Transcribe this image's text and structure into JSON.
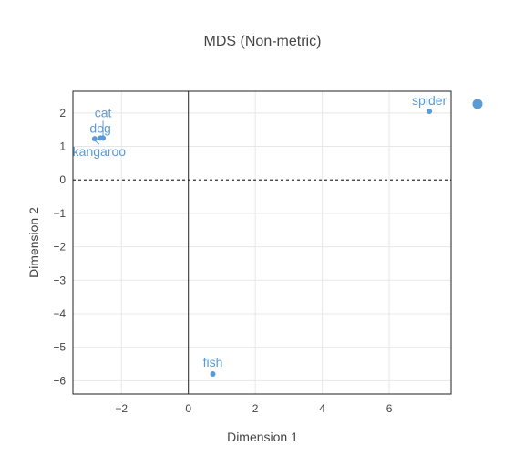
{
  "chart_data": {
    "type": "scatter",
    "title": "MDS (Non-metric)",
    "xlabel": "Dimension 1",
    "ylabel": "Dimension 2",
    "xlim": [
      -3.45,
      7.85
    ],
    "ylim": [
      -6.4,
      2.65
    ],
    "xticks": [
      -2,
      0,
      2,
      4,
      6
    ],
    "xtick_labels": [
      "−2",
      "0",
      "2",
      "4",
      "6"
    ],
    "yticks": [
      -6,
      -5,
      -4,
      -3,
      -2,
      -1,
      0,
      1,
      2
    ],
    "ytick_labels": [
      "−6",
      "−5",
      "−4",
      "−3",
      "−2",
      "−1",
      "0",
      "1",
      "2"
    ],
    "grid": true,
    "zero_line_y": "dashed",
    "zero_line_x": "solid",
    "legend": "right",
    "marker_color": "#5b9bd5",
    "points": [
      {
        "label": "cat",
        "x": -2.55,
        "y": 1.25
      },
      {
        "label": "dog",
        "x": -2.63,
        "y": 1.25
      },
      {
        "label": "kangaroo",
        "x": -2.8,
        "y": 1.23
      },
      {
        "label": "spider",
        "x": 7.2,
        "y": 2.05
      },
      {
        "label": "fish",
        "x": 0.73,
        "y": -5.8
      }
    ]
  }
}
